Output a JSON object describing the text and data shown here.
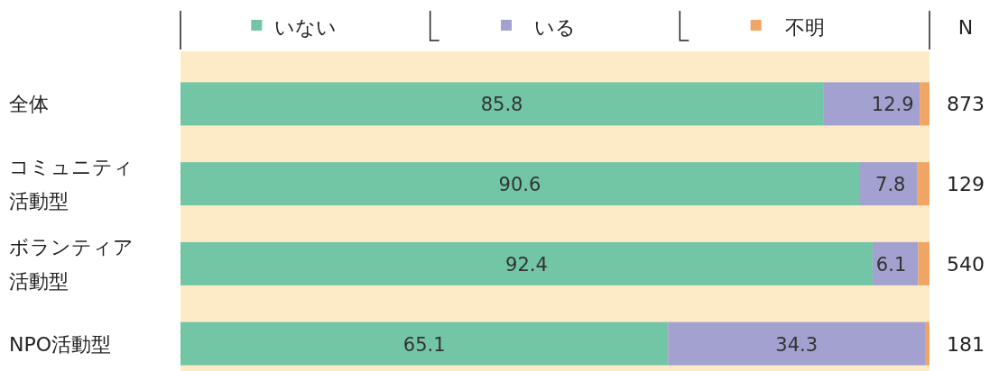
{
  "chart_data": {
    "type": "bar",
    "orientation": "horizontal",
    "stacked": true,
    "categories": [
      "全体",
      "コミュニティ活動型",
      "ボランティア活動型",
      "NPO活動型"
    ],
    "xlim": [
      0,
      100
    ],
    "tick_labels": "y",
    "legend": "top",
    "grid": false,
    "series": [
      {
        "name": "いない",
        "color": "#72c6a6",
        "values": [
          85.8,
          90.6,
          92.4,
          65.1
        ],
        "value_labels": [
          "85.8",
          "90.6",
          "92.4",
          "65.1"
        ]
      },
      {
        "name": "いる",
        "color": "#a3a1d0",
        "values": [
          12.9,
          7.8,
          6.1,
          34.3
        ],
        "value_labels": [
          "12.9",
          "7.8",
          "6.1",
          "34.3"
        ]
      },
      {
        "name": "不明",
        "color": "#f0a565",
        "values": [
          1.3,
          1.6,
          1.5,
          0.6
        ]
      }
    ],
    "annotations": [
      "N",
      "873",
      "129",
      "540",
      "181"
    ]
  }
}
